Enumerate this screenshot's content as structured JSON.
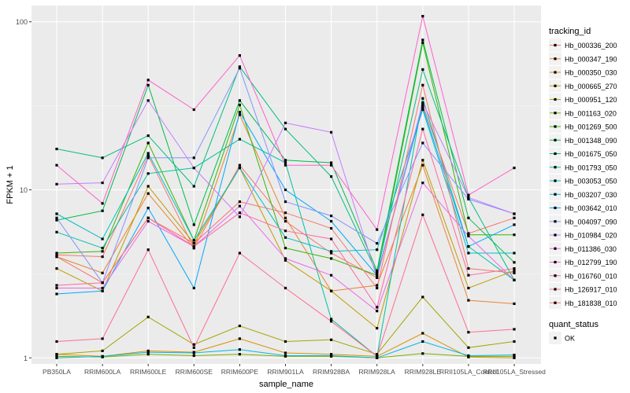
{
  "chart_data": {
    "type": "line",
    "xlabel": "sample_name",
    "ylabel": "FPKM + 1",
    "y_scale": "log10",
    "ylim": [
      0.92,
      125
    ],
    "y_ticks": [
      1,
      10,
      100
    ],
    "y_tick_labels": [
      "1",
      "10",
      "100"
    ],
    "grid": true,
    "legend_position": "right",
    "categories": [
      "PB350LA",
      "RRIM600LA",
      "RRIM600LE",
      "RRIM600SE",
      "RRIM600PE",
      "RRIM901LA",
      "RRIM928BA",
      "RRIM928LA",
      "RRIM928LE",
      "RRII105LA_Control",
      "RRII105LA_Stressed"
    ],
    "legend_title": "tracking_id",
    "series": [
      {
        "name": "Hb_000336_200",
        "color": "#F8766D",
        "values": [
          4.1,
          4.0,
          16.0,
          4.5,
          14.0,
          6.5,
          4.2,
          3.0,
          32,
          5.5,
          6.8
        ]
      },
      {
        "name": "Hb_000347_190",
        "color": "#EA8331",
        "values": [
          4.0,
          3.2,
          9.5,
          4.5,
          28.0,
          6.8,
          2.5,
          2.7,
          14.0,
          2.2,
          2.1
        ]
      },
      {
        "name": "Hb_000350_030",
        "color": "#D89000",
        "values": [
          1.05,
          1.02,
          1.1,
          1.08,
          1.3,
          1.07,
          1.05,
          1.02,
          1.4,
          1.01,
          1.0
        ]
      },
      {
        "name": "Hb_000665_270",
        "color": "#C09B00",
        "values": [
          3.4,
          2.5,
          10.5,
          4.8,
          13.5,
          3.8,
          2.5,
          1.5,
          15.0,
          2.6,
          3.3
        ]
      },
      {
        "name": "Hb_000951_120",
        "color": "#A3A500",
        "values": [
          1.05,
          1.1,
          1.75,
          1.2,
          1.55,
          1.25,
          1.28,
          1.05,
          2.3,
          1.15,
          1.25
        ]
      },
      {
        "name": "Hb_001163_020",
        "color": "#7CAE00",
        "values": [
          1.02,
          1.01,
          1.05,
          1.03,
          1.05,
          1.02,
          1.02,
          1.0,
          1.06,
          1.02,
          1.02
        ]
      },
      {
        "name": "Hb_001269_500",
        "color": "#39B600",
        "values": [
          4.2,
          4.3,
          19.0,
          5.0,
          32.0,
          4.5,
          3.9,
          3.1,
          75.0,
          5.4,
          5.4
        ]
      },
      {
        "name": "Hb_001348_090",
        "color": "#00BB4E",
        "values": [
          6.6,
          7.5,
          42.0,
          6.2,
          34.0,
          15.0,
          14.5,
          3.3,
          78.0,
          6.8,
          3.7
        ]
      },
      {
        "name": "Hb_001675_050",
        "color": "#00BF7D",
        "values": [
          17.5,
          15.5,
          21.0,
          10.5,
          54.0,
          23.0,
          12.0,
          3.2,
          52.0,
          9.0,
          2.9
        ]
      },
      {
        "name": "Hb_001793_050",
        "color": "#00C1A3",
        "values": [
          5.6,
          4.5,
          12.5,
          13.5,
          20.0,
          14.5,
          1.7,
          1.02,
          35.0,
          4.6,
          2.9
        ]
      },
      {
        "name": "Hb_003053_050",
        "color": "#00BFC4",
        "values": [
          7.2,
          5.1,
          16.5,
          5.0,
          13.5,
          5.2,
          4.3,
          4.4,
          30.0,
          4.2,
          4.2
        ]
      },
      {
        "name": "Hb_003207_030",
        "color": "#00B8E7",
        "values": [
          1.0,
          1.02,
          1.08,
          1.07,
          1.12,
          1.03,
          1.03,
          1.0,
          1.25,
          1.03,
          1.04
        ]
      },
      {
        "name": "Hb_003642_010",
        "color": "#00A9FF",
        "values": [
          2.4,
          2.5,
          7.8,
          2.6,
          29.0,
          10.0,
          6.5,
          3.1,
          31.0,
          4.6,
          6.2
        ]
      },
      {
        "name": "Hb_004097_090",
        "color": "#8494FF",
        "values": [
          6.8,
          2.8,
          15.5,
          15.5,
          53.0,
          8.5,
          7.0,
          4.8,
          19.0,
          8.8,
          7.2
        ]
      },
      {
        "name": "Hb_010984_020",
        "color": "#C77CFF",
        "values": [
          10.8,
          11.0,
          34.0,
          13.5,
          6.9,
          25.0,
          22.0,
          3.0,
          33.0,
          9.0,
          7.2
        ]
      },
      {
        "name": "Hb_011386_030",
        "color": "#ED68ED",
        "values": [
          2.6,
          2.6,
          6.5,
          4.6,
          8.0,
          3.9,
          3.1,
          1.9,
          11.0,
          5.3,
          2.9
        ]
      },
      {
        "name": "Hb_012799_190",
        "color": "#FF61CC",
        "values": [
          14.0,
          8.3,
          45.0,
          30.0,
          63.0,
          14.0,
          14.0,
          5.8,
          108,
          9.3,
          13.5
        ]
      },
      {
        "name": "Hb_016760_010",
        "color": "#FF68A1",
        "values": [
          2.7,
          2.8,
          6.8,
          4.6,
          7.3,
          5.7,
          5.1,
          2.0,
          23.0,
          3.1,
          3.4
        ]
      },
      {
        "name": "Hb_126917_010",
        "color": "#FF6C91",
        "values": [
          1.25,
          1.3,
          4.4,
          1.15,
          4.2,
          2.6,
          1.65,
          1.02,
          7.1,
          1.42,
          1.48
        ]
      },
      {
        "name": "Hb_181838_010",
        "color": "#F8766D",
        "values": [
          4.0,
          2.8,
          6.8,
          4.8,
          8.5,
          7.3,
          5.9,
          2.6,
          42.0,
          3.4,
          3.2
        ]
      }
    ],
    "legend2_title": "quant_status",
    "legend2_items": [
      "OK"
    ]
  }
}
